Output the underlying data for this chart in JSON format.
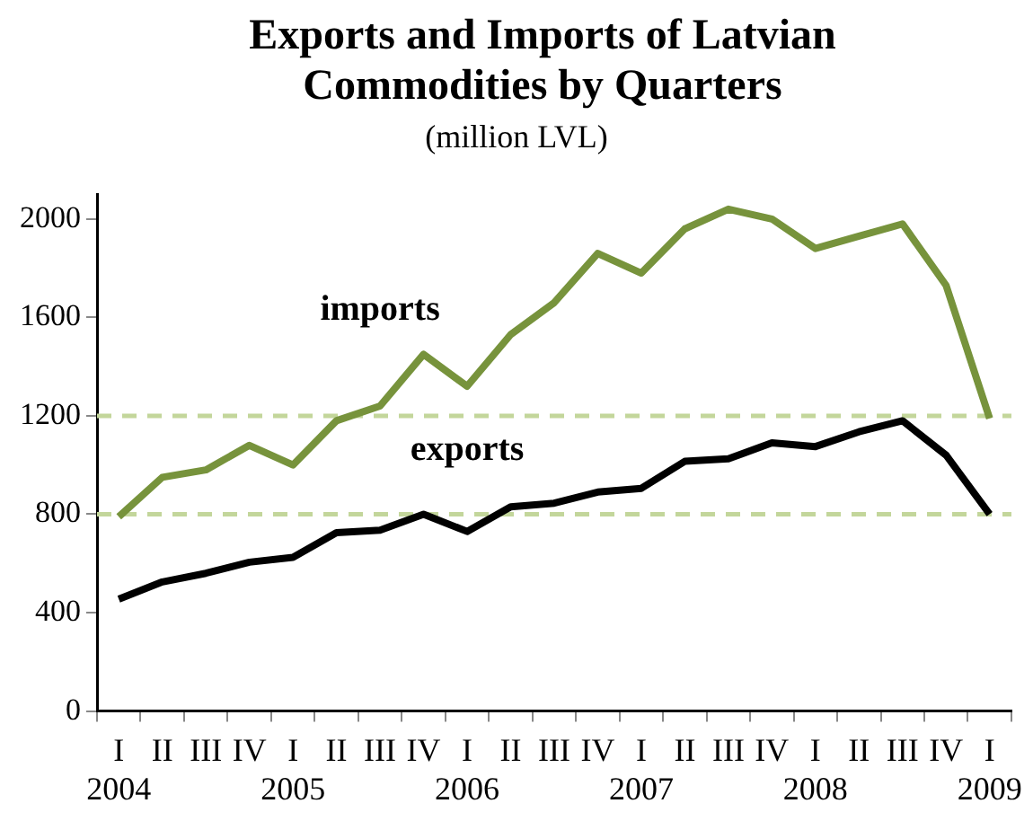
{
  "chart_data": {
    "type": "line",
    "title": "Exports and Imports of Latvian Commodities by Quarters",
    "subtitle": "(million LVL)",
    "categories": [
      "I\n2004",
      "II",
      "III",
      "IV",
      "I\n2005",
      "II",
      "III",
      "IV",
      "I\n2006",
      "II",
      "III",
      "IV",
      "I\n2007",
      "II",
      "III",
      "IV",
      "I\n2008",
      "II",
      "III",
      "IV",
      "I\n2009"
    ],
    "series": [
      {
        "name": "imports",
        "color": "#77933c",
        "values": [
          790,
          950,
          980,
          1080,
          1000,
          1180,
          1240,
          1450,
          1320,
          1530,
          1660,
          1860,
          1780,
          1960,
          2040,
          2000,
          1880,
          1930,
          1980,
          1730,
          1190
        ]
      },
      {
        "name": "exports",
        "color": "#000000",
        "values": [
          455,
          525,
          560,
          605,
          625,
          725,
          735,
          800,
          730,
          830,
          845,
          890,
          905,
          1015,
          1025,
          1090,
          1075,
          1135,
          1180,
          1040,
          800
        ]
      }
    ],
    "ylim": [
      0,
      2100
    ],
    "yticks": [
      0,
      400,
      800,
      1200,
      1600,
      2000
    ],
    "grid": false,
    "legend": false,
    "marker": "none",
    "line_style": "solid",
    "ref_lines": [
      {
        "axis": "y",
        "value": 1200,
        "color": "#c3d69b",
        "line_style": "dashed"
      },
      {
        "axis": "y",
        "value": 800,
        "color": "#c3d69b",
        "line_style": "dashed"
      }
    ]
  }
}
